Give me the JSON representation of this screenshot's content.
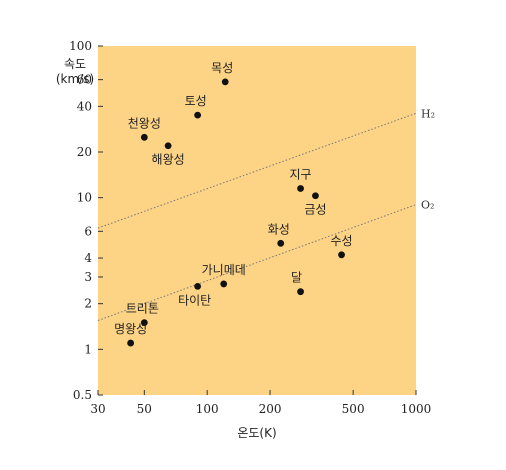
{
  "chart_data": {
    "type": "scatter",
    "xscale": "log",
    "yscale": "log",
    "xlim": [
      30,
      1000
    ],
    "ylim": [
      0.5,
      100
    ],
    "xlabel": "온도(K)",
    "ylabel_line1": "속도",
    "ylabel_line2": "(km/s)",
    "xticks": [
      30,
      50,
      100,
      200,
      500,
      1000
    ],
    "yticks": [
      0.5,
      1,
      2,
      3,
      4,
      6,
      10,
      20,
      40,
      60,
      100
    ],
    "background": "#fdd385",
    "point_color": "#111111",
    "line_color": "#777777",
    "points": [
      {
        "name": "목성",
        "x": 122,
        "y": 58
      },
      {
        "name": "토성",
        "x": 90,
        "y": 35
      },
      {
        "name": "천왕성",
        "x": 50,
        "y": 25
      },
      {
        "name": "해왕성",
        "x": 65,
        "y": 22
      },
      {
        "name": "지구",
        "x": 280,
        "y": 11.5
      },
      {
        "name": "금성",
        "x": 330,
        "y": 10.3
      },
      {
        "name": "화성",
        "x": 225,
        "y": 5
      },
      {
        "name": "수성",
        "x": 440,
        "y": 4.2
      },
      {
        "name": "가니메데",
        "x": 120,
        "y": 2.7
      },
      {
        "name": "타이탄",
        "x": 90,
        "y": 2.6
      },
      {
        "name": "달",
        "x": 280,
        "y": 2.4
      },
      {
        "name": "트리톤",
        "x": 50,
        "y": 1.5
      },
      {
        "name": "명왕성",
        "x": 43,
        "y": 1.1
      }
    ],
    "reference_lines": [
      {
        "name": "H₂",
        "x": [
          30,
          1000
        ],
        "y": [
          6.3,
          36
        ]
      },
      {
        "name": "O₂",
        "x": [
          30,
          1000
        ],
        "y": [
          1.55,
          9
        ]
      }
    ]
  }
}
